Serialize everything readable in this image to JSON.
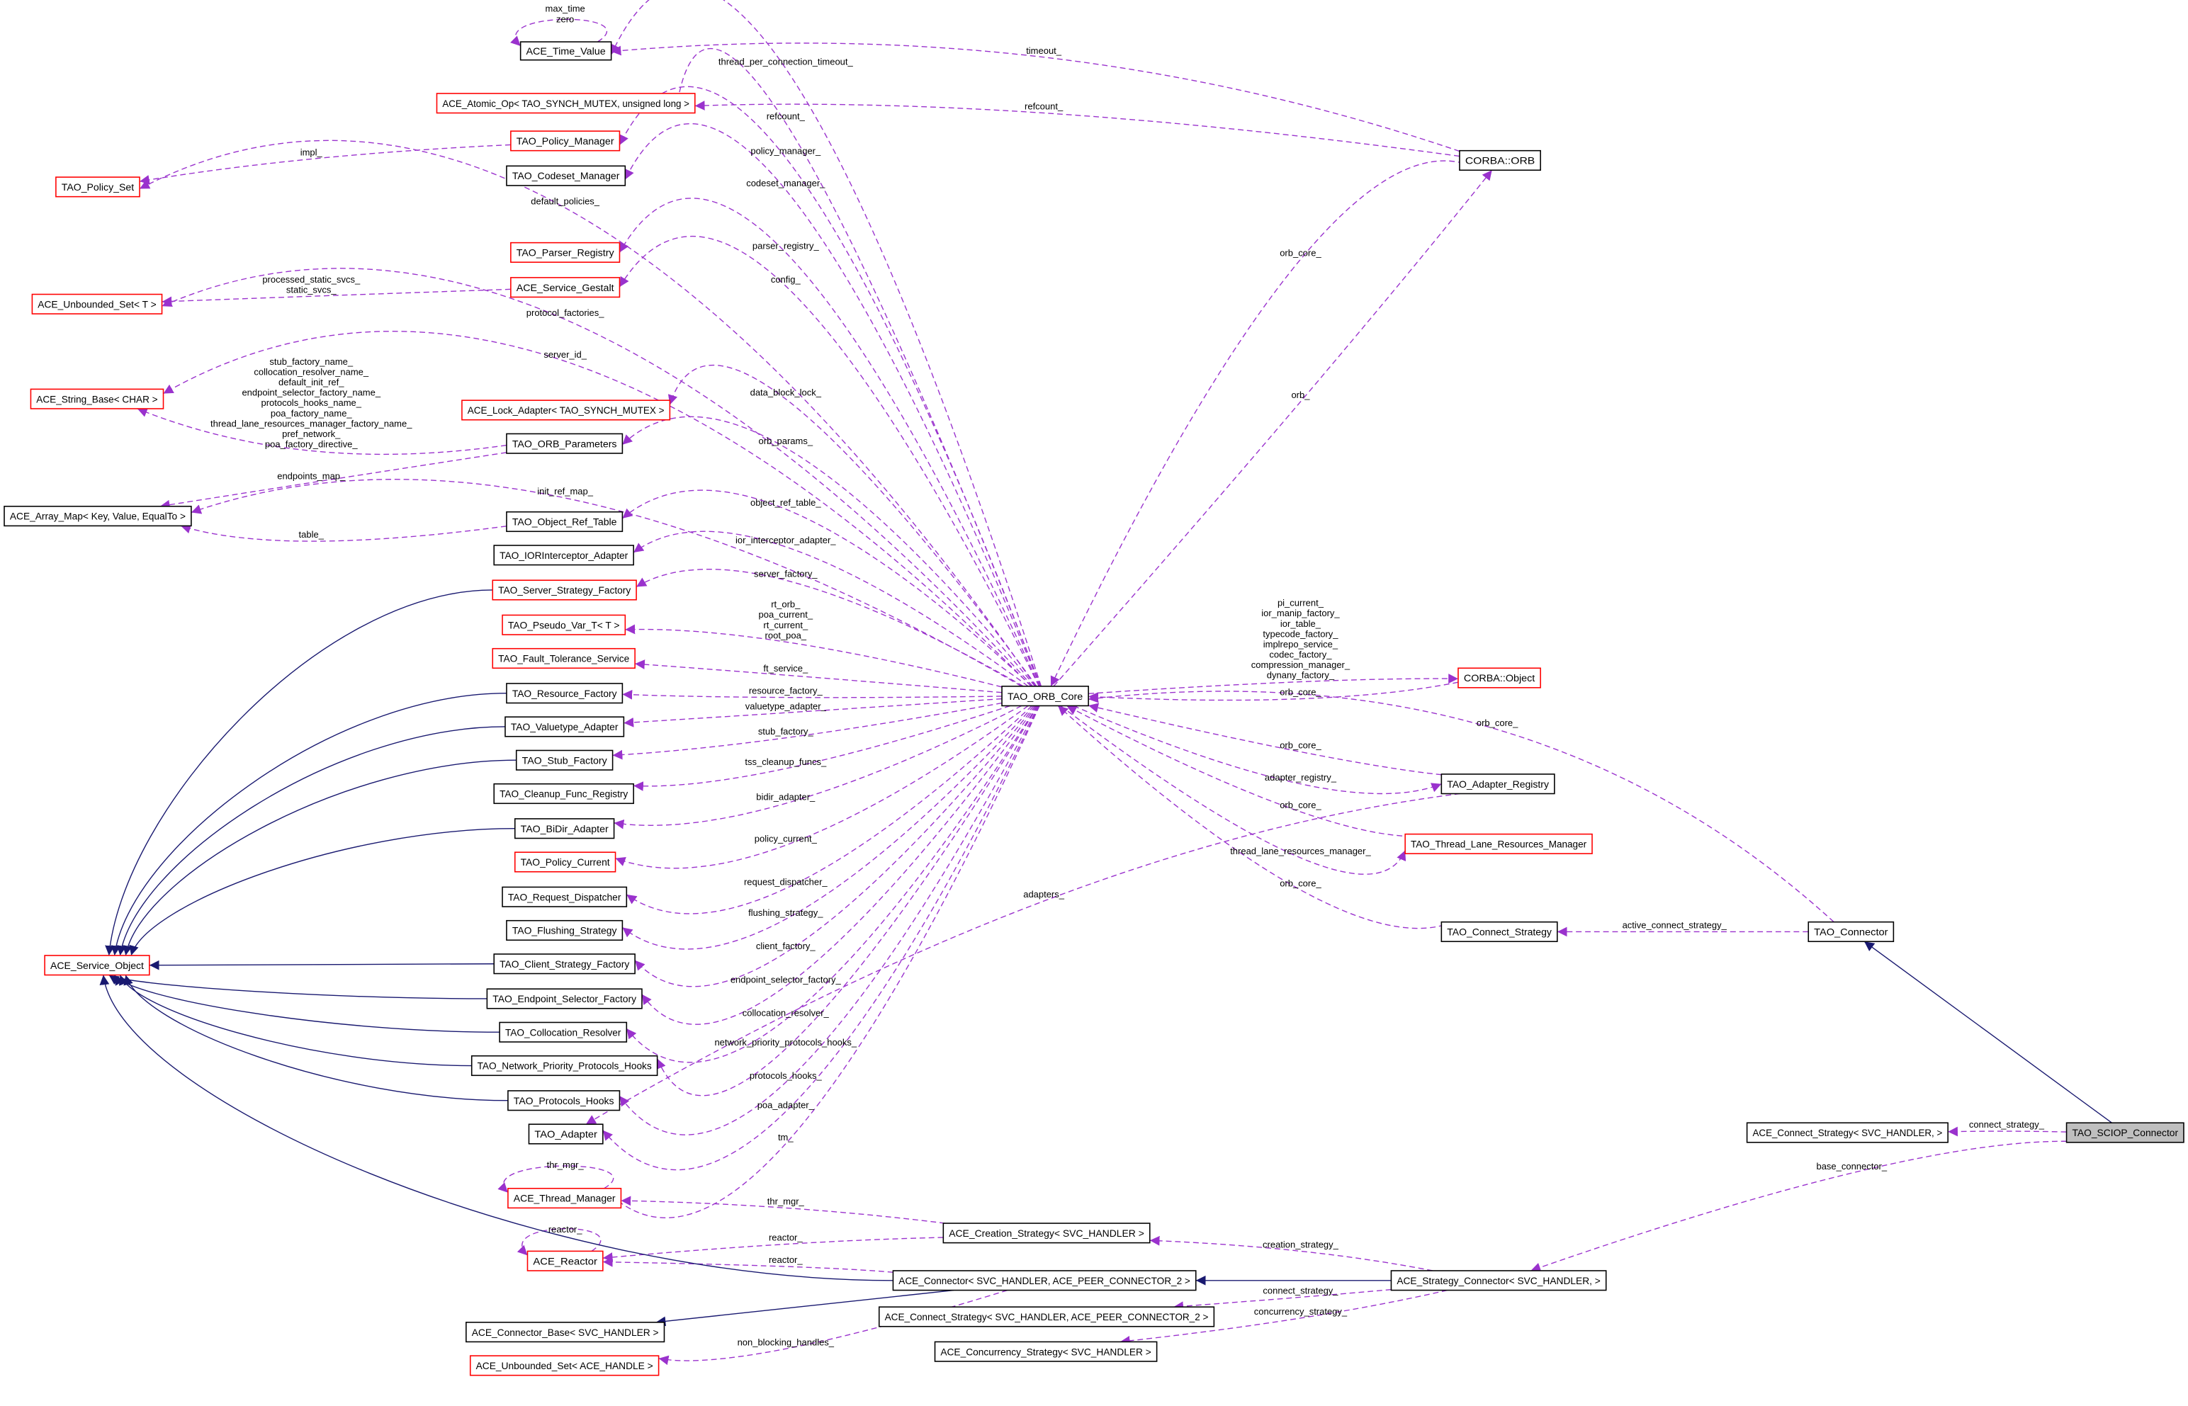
{
  "diagram": {
    "colors": {
      "usage_edge": "#9a32cd",
      "inheritance_edge": "#191970",
      "undocumented_border": "#ff0000",
      "documented_border": "#000000",
      "focus_fill": "#bfbfbf",
      "node_fill": "#ffffff"
    },
    "nodes": [
      {
        "label": "ACE_Time_Value",
        "border": "documented"
      },
      {
        "label": "ACE_Atomic_Op< TAO_SYNCH_MUTEX, unsigned long >",
        "border": "undocumented"
      },
      {
        "label": "TAO_Policy_Manager",
        "border": "undocumented"
      },
      {
        "label": "TAO_Codeset_Manager",
        "border": "documented"
      },
      {
        "label": "TAO_Policy_Set",
        "border": "undocumented"
      },
      {
        "label": "TAO_Parser_Registry",
        "border": "undocumented"
      },
      {
        "label": "ACE_Service_Gestalt",
        "border": "undocumented"
      },
      {
        "label": "ACE_Unbounded_Set< T >",
        "border": "undocumented"
      },
      {
        "label": "ACE_String_Base< CHAR >",
        "border": "undocumented"
      },
      {
        "label": "ACE_Lock_Adapter< TAO_SYNCH_MUTEX >",
        "border": "undocumented"
      },
      {
        "label": "TAO_ORB_Parameters",
        "border": "documented"
      },
      {
        "label": "ACE_Array_Map< Key, Value, EqualTo >",
        "border": "documented"
      },
      {
        "label": "TAO_Object_Ref_Table",
        "border": "documented"
      },
      {
        "label": "TAO_IORInterceptor_Adapter",
        "border": "documented"
      },
      {
        "label": "TAO_Server_Strategy_Factory",
        "border": "undocumented"
      },
      {
        "label": "TAO_Pseudo_Var_T< T >",
        "border": "undocumented"
      },
      {
        "label": "TAO_Fault_Tolerance_Service",
        "border": "undocumented"
      },
      {
        "label": "TAO_Resource_Factory",
        "border": "documented"
      },
      {
        "label": "TAO_Valuetype_Adapter",
        "border": "documented"
      },
      {
        "label": "TAO_Stub_Factory",
        "border": "documented"
      },
      {
        "label": "TAO_Cleanup_Func_Registry",
        "border": "documented"
      },
      {
        "label": "TAO_BiDir_Adapter",
        "border": "documented"
      },
      {
        "label": "TAO_Policy_Current",
        "border": "undocumented"
      },
      {
        "label": "TAO_Request_Dispatcher",
        "border": "documented"
      },
      {
        "label": "TAO_Flushing_Strategy",
        "border": "documented"
      },
      {
        "label": "TAO_Client_Strategy_Factory",
        "border": "documented"
      },
      {
        "label": "ACE_Service_Object",
        "border": "undocumented"
      },
      {
        "label": "TAO_Endpoint_Selector_Factory",
        "border": "documented"
      },
      {
        "label": "TAO_Collocation_Resolver",
        "border": "documented"
      },
      {
        "label": "TAO_Network_Priority_Protocols_Hooks",
        "border": "documented"
      },
      {
        "label": "TAO_Protocols_Hooks",
        "border": "documented"
      },
      {
        "label": "TAO_Adapter",
        "border": "documented"
      },
      {
        "label": "ACE_Thread_Manager",
        "border": "undocumented"
      },
      {
        "label": "ACE_Reactor",
        "border": "undocumented"
      },
      {
        "label": "ACE_Connector_Base< SVC_HANDLER >",
        "border": "documented"
      },
      {
        "label": "ACE_Unbounded_Set< ACE_HANDLE >",
        "border": "undocumented"
      },
      {
        "label": "TAO_ORB_Core",
        "border": "documented"
      },
      {
        "label": "CORBA::ORB",
        "border": "documented"
      },
      {
        "label": "CORBA::Object",
        "border": "undocumented"
      },
      {
        "label": "TAO_Adapter_Registry",
        "border": "documented"
      },
      {
        "label": "TAO_Thread_Lane_Resources_Manager",
        "border": "undocumented"
      },
      {
        "label": "TAO_Connect_Strategy",
        "border": "documented"
      },
      {
        "label": "TAO_Connector",
        "border": "documented"
      },
      {
        "label": "ACE_Connect_Strategy< SVC_HANDLER, >",
        "border": "documented"
      },
      {
        "label": "TAO_SCIOP_Connector",
        "border": "focus"
      },
      {
        "label": "ACE_Creation_Strategy< SVC_HANDLER >",
        "border": "documented"
      },
      {
        "label": "ACE_Connector< SVC_HANDLER, ACE_PEER_CONNECTOR_2 >",
        "border": "documented"
      },
      {
        "label": "ACE_Strategy_Connector< SVC_HANDLER, >",
        "border": "documented"
      },
      {
        "label": "ACE_Connect_Strategy< SVC_HANDLER, ACE_PEER_CONNECTOR_2 >",
        "border": "documented"
      },
      {
        "label": "ACE_Concurrency_Strategy< SVC_HANDLER >",
        "border": "documented"
      }
    ],
    "edges": [
      {
        "from": 0,
        "to": 0,
        "kind": "usage",
        "label": [
          "max_time",
          "zero"
        ]
      },
      {
        "from": 36,
        "to": 0,
        "kind": "usage",
        "label": [
          "thread_per_connection_timeout_"
        ]
      },
      {
        "from": 37,
        "to": 0,
        "kind": "usage",
        "label": [
          "timeout_"
        ]
      },
      {
        "from": 37,
        "to": 1,
        "kind": "usage",
        "label": [
          "refcount_"
        ]
      },
      {
        "from": 36,
        "to": 1,
        "kind": "usage",
        "label": [
          "refcount_"
        ]
      },
      {
        "from": 36,
        "to": 2,
        "kind": "usage",
        "label": [
          "policy_manager_"
        ]
      },
      {
        "from": 2,
        "to": 4,
        "kind": "usage",
        "label": [
          "impl_"
        ]
      },
      {
        "from": 36,
        "to": 3,
        "kind": "usage",
        "label": [
          "codeset_manager_"
        ]
      },
      {
        "from": 36,
        "to": 4,
        "kind": "usage",
        "label": [
          "default_policies_"
        ]
      },
      {
        "from": 36,
        "to": 5,
        "kind": "usage",
        "label": [
          "parser_registry_"
        ]
      },
      {
        "from": 36,
        "to": 6,
        "kind": "usage",
        "label": [
          "config_"
        ]
      },
      {
        "from": 6,
        "to": 7,
        "kind": "usage",
        "label": [
          "processed_static_svcs_",
          "static_svcs_"
        ]
      },
      {
        "from": 36,
        "to": 7,
        "kind": "usage",
        "label": [
          "protocol_factories_"
        ]
      },
      {
        "from": 36,
        "to": 8,
        "kind": "usage",
        "label": [
          "server_id_"
        ]
      },
      {
        "from": 10,
        "to": 8,
        "kind": "usage",
        "label": [
          "stub_factory_name_",
          "collocation_resolver_name_",
          "default_init_ref_",
          "endpoint_selector_factory_name_",
          "protocols_hooks_name_",
          "poa_factory_name_",
          "thread_lane_resources_manager_factory_name_",
          "pref_network_",
          "poa_factory_directive_"
        ]
      },
      {
        "from": 36,
        "to": 9,
        "kind": "usage",
        "label": [
          "data_block_lock_"
        ]
      },
      {
        "from": 36,
        "to": 10,
        "kind": "usage",
        "label": [
          "orb_params_"
        ]
      },
      {
        "from": 10,
        "to": 11,
        "kind": "usage",
        "label": [
          "endpoints_map_"
        ]
      },
      {
        "from": 36,
        "to": 11,
        "kind": "usage",
        "label": [
          "init_ref_map_"
        ]
      },
      {
        "from": 36,
        "to": 12,
        "kind": "usage",
        "label": [
          "object_ref_table_"
        ]
      },
      {
        "from": 12,
        "to": 11,
        "kind": "usage",
        "label": [
          "table_"
        ]
      },
      {
        "from": 36,
        "to": 13,
        "kind": "usage",
        "label": [
          "ior_interceptor_adapter_"
        ]
      },
      {
        "from": 36,
        "to": 14,
        "kind": "usage",
        "label": [
          "server_factory_"
        ]
      },
      {
        "from": 36,
        "to": 15,
        "kind": "usage",
        "label": [
          "rt_orb_",
          "poa_current_",
          "rt_current_",
          "root_poa_"
        ]
      },
      {
        "from": 36,
        "to": 16,
        "kind": "usage",
        "label": [
          "ft_service_"
        ]
      },
      {
        "from": 36,
        "to": 17,
        "kind": "usage",
        "label": [
          "resource_factory_"
        ]
      },
      {
        "from": 36,
        "to": 18,
        "kind": "usage",
        "label": [
          "valuetype_adapter_"
        ]
      },
      {
        "from": 36,
        "to": 19,
        "kind": "usage",
        "label": [
          "stub_factory_"
        ]
      },
      {
        "from": 36,
        "to": 20,
        "kind": "usage",
        "label": [
          "tss_cleanup_funcs_"
        ]
      },
      {
        "from": 36,
        "to": 21,
        "kind": "usage",
        "label": [
          "bidir_adapter_"
        ]
      },
      {
        "from": 36,
        "to": 22,
        "kind": "usage",
        "label": [
          "policy_current_"
        ]
      },
      {
        "from": 36,
        "to": 23,
        "kind": "usage",
        "label": [
          "request_dispatcher_"
        ]
      },
      {
        "from": 36,
        "to": 24,
        "kind": "usage",
        "label": [
          "flushing_strategy_"
        ]
      },
      {
        "from": 36,
        "to": 25,
        "kind": "usage",
        "label": [
          "client_factory_"
        ]
      },
      {
        "from": 36,
        "to": 27,
        "kind": "usage",
        "label": [
          "endpoint_selector_factory_"
        ]
      },
      {
        "from": 36,
        "to": 28,
        "kind": "usage",
        "label": [
          "collocation_resolver_"
        ]
      },
      {
        "from": 36,
        "to": 29,
        "kind": "usage",
        "label": [
          "network_priority_protocols_hooks_"
        ]
      },
      {
        "from": 36,
        "to": 30,
        "kind": "usage",
        "label": [
          "protocols_hooks_"
        ]
      },
      {
        "from": 36,
        "to": 31,
        "kind": "usage",
        "label": [
          "poa_adapter_"
        ]
      },
      {
        "from": 39,
        "to": 31,
        "kind": "usage",
        "label": [
          "adapters_"
        ]
      },
      {
        "from": 36,
        "to": 32,
        "kind": "usage",
        "label": [
          "tm_"
        ]
      },
      {
        "from": 32,
        "to": 32,
        "kind": "usage",
        "label": [
          "thr_mgr_"
        ]
      },
      {
        "from": 45,
        "to": 32,
        "kind": "usage",
        "label": [
          "thr_mgr_"
        ]
      },
      {
        "from": 33,
        "to": 33,
        "kind": "usage",
        "label": [
          "reactor_"
        ]
      },
      {
        "from": 45,
        "to": 33,
        "kind": "usage",
        "label": [
          "reactor_"
        ]
      },
      {
        "from": 46,
        "to": 33,
        "kind": "usage",
        "label": [
          "reactor_"
        ]
      },
      {
        "from": 46,
        "to": 35,
        "kind": "usage",
        "label": [
          "non_blocking_handles_"
        ]
      },
      {
        "from": 36,
        "to": 37,
        "kind": "usage",
        "label": [
          "orb_"
        ]
      },
      {
        "from": 37,
        "to": 36,
        "kind": "usage",
        "label": [
          "orb_core_"
        ]
      },
      {
        "from": 36,
        "to": 38,
        "kind": "usage",
        "label": [
          "pi_current_",
          "ior_manip_factory_",
          "ior_table_",
          "typecode_factory_",
          "implrepo_service_",
          "codec_factory_",
          "compression_manager_",
          "dynany_factory_"
        ]
      },
      {
        "from": 38,
        "to": 36,
        "kind": "usage",
        "label": [
          "orb_core_"
        ]
      },
      {
        "from": 42,
        "to": 36,
        "kind": "usage",
        "label": [
          "orb_core_"
        ]
      },
      {
        "from": 39,
        "to": 36,
        "kind": "usage",
        "label": [
          "orb_core_"
        ]
      },
      {
        "from": 36,
        "to": 39,
        "kind": "usage",
        "label": [
          "adapter_registry_"
        ]
      },
      {
        "from": 40,
        "to": 36,
        "kind": "usage",
        "label": [
          "orb_core_"
        ]
      },
      {
        "from": 36,
        "to": 40,
        "kind": "usage",
        "label": [
          "thread_lane_resources_manager_"
        ]
      },
      {
        "from": 41,
        "to": 36,
        "kind": "usage",
        "label": [
          "orb_core_"
        ]
      },
      {
        "from": 42,
        "to": 41,
        "kind": "usage",
        "label": [
          "active_connect_strategy_"
        ]
      },
      {
        "from": 44,
        "to": 43,
        "kind": "usage",
        "label": [
          "connect_strategy_"
        ]
      },
      {
        "from": 44,
        "to": 47,
        "kind": "usage",
        "label": [
          "base_connector_"
        ]
      },
      {
        "from": 47,
        "to": 45,
        "kind": "usage",
        "label": [
          "creation_strategy_"
        ]
      },
      {
        "from": 47,
        "to": 48,
        "kind": "usage",
        "label": [
          "connect_strategy_"
        ]
      },
      {
        "from": 47,
        "to": 49,
        "kind": "usage",
        "label": [
          "concurrency_strategy_"
        ]
      },
      {
        "from": 44,
        "to": 42,
        "kind": "inheritance",
        "label": []
      },
      {
        "from": 47,
        "to": 46,
        "kind": "inheritance",
        "label": []
      },
      {
        "from": 46,
        "to": 34,
        "kind": "inheritance",
        "label": []
      },
      {
        "from": 46,
        "to": 26,
        "kind": "inheritance",
        "label": []
      },
      {
        "from": 14,
        "to": 26,
        "kind": "inheritance",
        "label": []
      },
      {
        "from": 17,
        "to": 26,
        "kind": "inheritance",
        "label": []
      },
      {
        "from": 18,
        "to": 26,
        "kind": "inheritance",
        "label": []
      },
      {
        "from": 19,
        "to": 26,
        "kind": "inheritance",
        "label": []
      },
      {
        "from": 21,
        "to": 26,
        "kind": "inheritance",
        "label": []
      },
      {
        "from": 25,
        "to": 26,
        "kind": "inheritance",
        "label": []
      },
      {
        "from": 27,
        "to": 26,
        "kind": "inheritance",
        "label": []
      },
      {
        "from": 28,
        "to": 26,
        "kind": "inheritance",
        "label": []
      },
      {
        "from": 29,
        "to": 26,
        "kind": "inheritance",
        "label": []
      },
      {
        "from": 30,
        "to": 26,
        "kind": "inheritance",
        "label": []
      }
    ]
  }
}
